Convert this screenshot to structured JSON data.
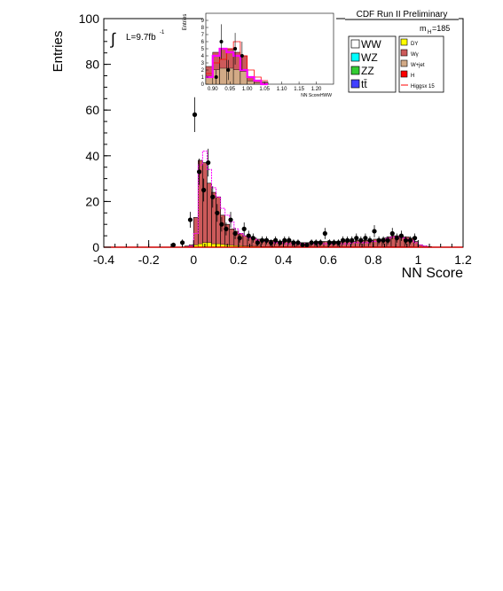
{
  "header": {
    "title": "CDF Run II Preliminary",
    "mass_label": "m",
    "mass_sub": "H",
    "mass_value": "=185"
  },
  "luminosity": {
    "integral_symbol": "∫",
    "text": "L=9.7fb",
    "sup": "-1"
  },
  "legend": {
    "left": [
      {
        "label": "WW",
        "color": "#ffffff"
      },
      {
        "label": "WZ",
        "color": "#00ffff"
      },
      {
        "label": "ZZ",
        "color": "#33cc33"
      },
      {
        "label": "tt̄",
        "color": "#4040ff"
      }
    ],
    "right": [
      {
        "label": "DY",
        "color": "#ffff00"
      },
      {
        "label": "Wγ",
        "color": "#cc5a5a"
      },
      {
        "label": "W+jet",
        "color": "#d2aa86"
      },
      {
        "label": "H",
        "color": "#ff0000"
      },
      {
        "label": "Higgsx 15",
        "color": "#ff0000",
        "line": true
      }
    ]
  },
  "chart_data": [
    {
      "type": "bar",
      "title": "",
      "xlabel": "NN Score",
      "ylabel": "Entries",
      "xlim": [
        -0.4,
        1.2
      ],
      "ylim": [
        0,
        100
      ],
      "x_ticks": [
        "-0.4",
        "-0.2",
        "0",
        "0.2",
        "0.4",
        "0.6",
        "0.8",
        "1",
        "1.2"
      ],
      "y_ticks": [
        "0",
        "20",
        "40",
        "60",
        "80",
        "100"
      ],
      "bin_width": 0.02,
      "bins_x": [
        -0.04,
        -0.02,
        0.0,
        0.02,
        0.04,
        0.06,
        0.08,
        0.1,
        0.12,
        0.14,
        0.16,
        0.18,
        0.2,
        0.22,
        0.24,
        0.26,
        0.28,
        0.3,
        0.32,
        0.34,
        0.36,
        0.38,
        0.4,
        0.42,
        0.44,
        0.46,
        0.48,
        0.5,
        0.52,
        0.54,
        0.56,
        0.58,
        0.6,
        0.62,
        0.64,
        0.66,
        0.68,
        0.7,
        0.72,
        0.74,
        0.76,
        0.78,
        0.8,
        0.82,
        0.84,
        0.86,
        0.88,
        0.9,
        0.92,
        0.94,
        0.96,
        0.98,
        1.0,
        1.02,
        1.04
      ],
      "stack_total": [
        0.5,
        1,
        13,
        38,
        37,
        28,
        24,
        22,
        14,
        10,
        8,
        7,
        6,
        5,
        4.5,
        4,
        3.5,
        3.5,
        3,
        3,
        2.5,
        2.5,
        2.5,
        2.5,
        2,
        2,
        2,
        2,
        2,
        2.5,
        2.5,
        2.5,
        2.5,
        2.5,
        2.5,
        2.5,
        2.5,
        2.5,
        3,
        3,
        3,
        3,
        3.5,
        3.5,
        4,
        4.5,
        5,
        5,
        4.5,
        4.5,
        4,
        2.5,
        1,
        0.5,
        0.3
      ],
      "dy": [
        0,
        0.2,
        1,
        1.5,
        2,
        2,
        1.5,
        1.5,
        1.2,
        1,
        0.8,
        0.7,
        0.6,
        0.5,
        0.5,
        0.4,
        0.4,
        0.3,
        0.3,
        0.3,
        0.3,
        0.3,
        0.3,
        0.2,
        0.2,
        0.2,
        0.2,
        0.2,
        0.2,
        0.2,
        0.2,
        0.2,
        0.2,
        0.2,
        0.2,
        0.2,
        0.2,
        0.2,
        0.2,
        0.2,
        0.2,
        0.2,
        0.2,
        0.2,
        0.2,
        0.2,
        0.2,
        0.2,
        0.2,
        0.2,
        0.2,
        0.1,
        0.1,
        0,
        0
      ],
      "higgs_x15": [
        0,
        0.5,
        6,
        36,
        42,
        34,
        26,
        22,
        17,
        14,
        11,
        8,
        6,
        5,
        4,
        3.5,
        3,
        2.5,
        2.5,
        2,
        2,
        2,
        1.5,
        1.5,
        1.5,
        1.5,
        1.5,
        1.5,
        1.5,
        1.5,
        1.5,
        1.5,
        1.5,
        1.5,
        1.5,
        1.5,
        1.5,
        2,
        2,
        2,
        2,
        2.5,
        2.5,
        3,
        3.5,
        4,
        4.5,
        4.5,
        4,
        3.5,
        3,
        2,
        1,
        0.5,
        0
      ],
      "data_x": [
        -0.09,
        -0.05,
        -0.015,
        0.005,
        0.025,
        0.045,
        0.065,
        0.085,
        0.105,
        0.125,
        0.145,
        0.165,
        0.185,
        0.205,
        0.225,
        0.245,
        0.265,
        0.285,
        0.305,
        0.325,
        0.345,
        0.365,
        0.385,
        0.405,
        0.425,
        0.445,
        0.465,
        0.485,
        0.505,
        0.525,
        0.545,
        0.565,
        0.585,
        0.605,
        0.625,
        0.645,
        0.665,
        0.685,
        0.705,
        0.725,
        0.745,
        0.765,
        0.785,
        0.805,
        0.825,
        0.845,
        0.865,
        0.885,
        0.905,
        0.925,
        0.945,
        0.965,
        0.985
      ],
      "data_y": [
        1,
        2,
        12,
        58,
        33,
        25,
        37,
        22,
        15,
        10,
        8,
        12,
        6,
        4,
        8,
        5,
        4,
        2,
        3,
        3,
        2,
        3,
        2,
        3,
        3,
        2,
        2,
        1,
        1,
        2,
        2,
        2,
        6,
        2,
        2,
        2,
        3,
        3,
        3,
        4,
        3,
        4,
        3,
        7,
        3,
        3,
        3,
        6,
        4,
        5,
        3,
        3,
        4
      ]
    },
    {
      "type": "bar",
      "title": "",
      "xlabel": "NN ScoreHWW",
      "ylabel": "Entries",
      "xlim": [
        0.88,
        1.25
      ],
      "ylim": [
        0,
        10
      ],
      "x_ticks": [
        "0.90",
        "0.95",
        "1.00",
        "1.05",
        "1.10",
        "1.15",
        "1.20"
      ],
      "y_ticks": [
        "0",
        "1",
        "2",
        "3",
        "4",
        "5",
        "6",
        "7",
        "8",
        "9"
      ],
      "bin_width": 0.02,
      "bins_x": [
        0.88,
        0.9,
        0.92,
        0.94,
        0.96,
        0.98,
        1.0,
        1.02,
        1.04
      ],
      "stack_total": [
        2.5,
        4.5,
        5,
        5,
        4.5,
        4,
        1,
        0.5,
        0.3
      ],
      "higgs_x15": [
        1,
        4,
        5,
        4.5,
        4,
        2,
        1,
        0.5,
        0
      ],
      "red_outline": [
        1.5,
        3,
        3.5,
        5,
        6,
        4,
        2,
        1,
        0.5
      ],
      "data_x": [
        0.91,
        0.925,
        0.945,
        0.965,
        0.985
      ],
      "data_y": [
        1,
        6,
        2,
        5,
        4
      ]
    }
  ]
}
